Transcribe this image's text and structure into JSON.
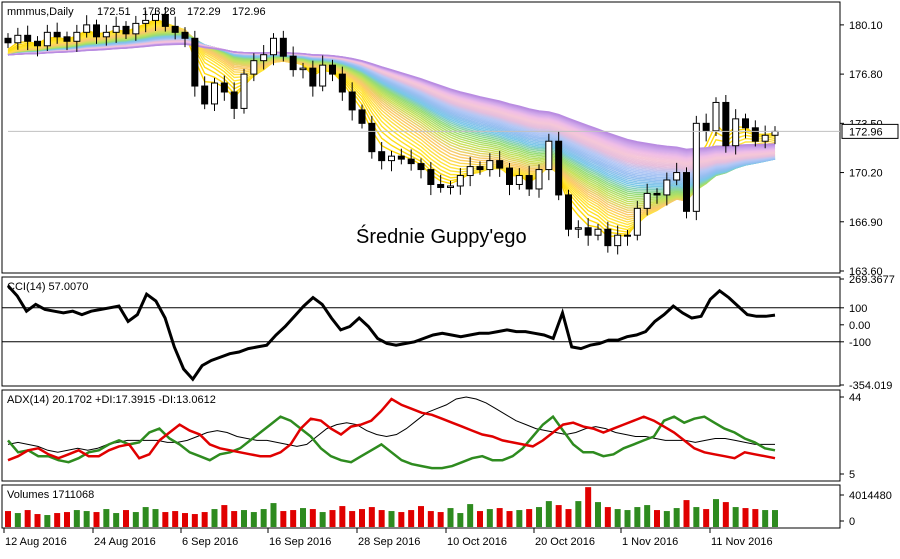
{
  "chart_data": [
    {
      "type": "candlestick",
      "pane": "price",
      "title": "mmmus,Daily",
      "ohlc_header": [
        "172.51",
        "173.28",
        "172.29",
        "172.96"
      ],
      "last_price": "172.96",
      "annotation": "Średnie Guppy'ego",
      "y_ticks": [
        "180.10",
        "176.80",
        "173.50",
        "170.20",
        "166.90",
        "163.60"
      ],
      "ylim": [
        163.6,
        181.5
      ],
      "x_labels": [
        "12 Aug 2016",
        "24 Aug 2016",
        "6 Sep 2016",
        "16 Sep 2016",
        "28 Sep 2016",
        "10 Oct 2016",
        "20 Oct 2016",
        "1 Nov 2016",
        "11 Nov 2016"
      ],
      "closes": [
        178.9,
        179.4,
        179.0,
        178.7,
        179.6,
        179.3,
        179.0,
        179.6,
        180.1,
        179.3,
        179.6,
        180.0,
        179.5,
        180.2,
        180.4,
        180.8,
        180.0,
        179.6,
        179.2,
        176.0,
        174.8,
        176.2,
        175.6,
        174.5,
        176.8,
        177.7,
        178.1,
        179.2,
        178.0,
        177.1,
        177.2,
        176.0,
        177.4,
        176.8,
        175.6,
        174.4,
        173.5,
        171.6,
        171.0,
        171.3,
        171.1,
        170.8,
        170.4,
        169.4,
        169.2,
        169.3,
        170.0,
        170.6,
        170.4,
        171.0,
        170.5,
        169.4,
        170.0,
        169.1,
        170.4,
        172.3,
        168.7,
        166.4,
        166.5,
        166.0,
        166.4,
        165.3,
        166.0,
        166.0,
        167.8,
        168.8,
        168.7,
        169.7,
        170.2,
        167.6,
        173.5,
        173.0,
        174.9,
        172.0,
        173.8,
        173.2,
        172.3,
        172.7,
        172.96
      ],
      "indicator": "Guppy multiple moving averages"
    },
    {
      "type": "line",
      "pane": "cci",
      "title": "CCI(14) 57.0070",
      "y_ticks": [
        "269.3677",
        "100",
        "0.00",
        "-100",
        "-354.019"
      ],
      "ylim": [
        -354.019,
        269.3677
      ],
      "levels": [
        100,
        -100
      ],
      "series": [
        {
          "name": "CCI(14)",
          "color": "#000000",
          "values": [
            230,
            170,
            80,
            120,
            90,
            80,
            70,
            80,
            60,
            80,
            90,
            100,
            110,
            20,
            60,
            180,
            140,
            40,
            -130,
            -260,
            -320,
            -240,
            -210,
            -190,
            -170,
            -160,
            -140,
            -130,
            -120,
            -60,
            -10,
            50,
            110,
            160,
            120,
            40,
            -30,
            -10,
            40,
            -10,
            -80,
            -110,
            -120,
            -110,
            -100,
            -80,
            -60,
            -50,
            -60,
            -70,
            -60,
            -50,
            -50,
            -40,
            -30,
            -40,
            -40,
            -50,
            -60,
            -80,
            70,
            -130,
            -140,
            -120,
            -110,
            -90,
            -90,
            -70,
            -60,
            -40,
            20,
            60,
            110,
            70,
            40,
            50,
            150,
            200,
            160,
            110,
            60,
            50,
            50,
            57
          ]
        }
      ]
    },
    {
      "type": "line",
      "pane": "adx",
      "title": "ADX(14) 20.1702 +DI:17.3915 -DI:13.0612",
      "y_ticks": [
        "44",
        "5"
      ],
      "ylim": [
        5,
        44
      ],
      "series": [
        {
          "name": "ADX(14)",
          "color": "#000000",
          "values": [
            20,
            21,
            20,
            19,
            17,
            16,
            17,
            18,
            17,
            18,
            20,
            21,
            22,
            22,
            22,
            22,
            21,
            21,
            22,
            24,
            26,
            27,
            26,
            24,
            23,
            22,
            22,
            21,
            20,
            19,
            20,
            24,
            28,
            30,
            31,
            30,
            27,
            25,
            24,
            25,
            28,
            32,
            36,
            38,
            40,
            43,
            44,
            43,
            41,
            38,
            35,
            32,
            30,
            28,
            27,
            26,
            25,
            26,
            28,
            29,
            28,
            26,
            25,
            24,
            24,
            23,
            22,
            22,
            22,
            21,
            22,
            23,
            23,
            22,
            21,
            20,
            20,
            20
          ]
        },
        {
          "name": "+DI",
          "color": "#2e8b1f",
          "values": [
            22,
            16,
            17,
            14,
            14,
            12,
            11,
            13,
            16,
            17,
            20,
            22,
            20,
            21,
            26,
            28,
            23,
            20,
            16,
            14,
            12,
            15,
            16,
            18,
            22,
            26,
            30,
            34,
            32,
            28,
            24,
            18,
            14,
            12,
            11,
            14,
            17,
            20,
            16,
            12,
            10,
            9,
            8,
            8,
            9,
            11,
            13,
            14,
            12,
            12,
            14,
            18,
            24,
            30,
            34,
            27,
            20,
            16,
            16,
            14,
            15,
            18,
            20,
            22,
            24,
            32,
            34,
            31,
            33,
            34,
            31,
            28,
            26,
            23,
            21,
            18,
            17
          ]
        },
        {
          "name": "-DI",
          "color": "#e00000",
          "values": [
            12,
            14,
            17,
            18,
            15,
            13,
            15,
            17,
            14,
            14,
            17,
            19,
            20,
            13,
            15,
            22,
            26,
            30,
            27,
            25,
            20,
            18,
            17,
            16,
            15,
            14,
            14,
            16,
            20,
            28,
            33,
            32,
            28,
            25,
            29,
            30,
            32,
            37,
            43,
            40,
            38,
            36,
            35,
            33,
            31,
            29,
            27,
            25,
            24,
            22,
            21,
            20,
            19,
            22,
            26,
            30,
            31,
            29,
            28,
            26,
            28,
            30,
            32,
            34,
            32,
            29,
            26,
            22,
            18,
            16,
            15,
            14,
            13,
            16,
            15,
            14,
            13
          ]
        }
      ]
    },
    {
      "type": "bar",
      "pane": "volume",
      "title": "Volumes 1711068",
      "y_ticks": [
        "4014480",
        "0"
      ],
      "ylim": [
        0,
        4014480
      ],
      "values": [
        1.6,
        1.4,
        1.7,
        1.3,
        1.2,
        1.4,
        1.5,
        1.7,
        1.6,
        1.5,
        1.8,
        1.4,
        1.7,
        1.5,
        2.0,
        1.8,
        1.5,
        1.6,
        1.4,
        1.3,
        1.5,
        1.8,
        2.2,
        1.6,
        1.7,
        1.5,
        1.8,
        2.4,
        1.6,
        1.7,
        1.9,
        1.8,
        1.5,
        1.7,
        2.1,
        1.6,
        1.8,
        2.0,
        1.7,
        1.6,
        1.5,
        1.7,
        2.1,
        1.6,
        1.5,
        1.9,
        1.4,
        2.3,
        1.6,
        1.8,
        1.9,
        1.6,
        1.7,
        1.8,
        2.0,
        2.6,
        2.2,
        1.8,
        2.6,
        4.0,
        2.5,
        2.0,
        1.8,
        1.7,
        2.0,
        2.2,
        1.7,
        1.6,
        1.9,
        2.7,
        2.0,
        1.8,
        2.8,
        2.5,
        2.0,
        1.9,
        1.8,
        1.7,
        1.7
      ],
      "colors": [
        "#e00000",
        "#2e8b1f"
      ]
    }
  ]
}
